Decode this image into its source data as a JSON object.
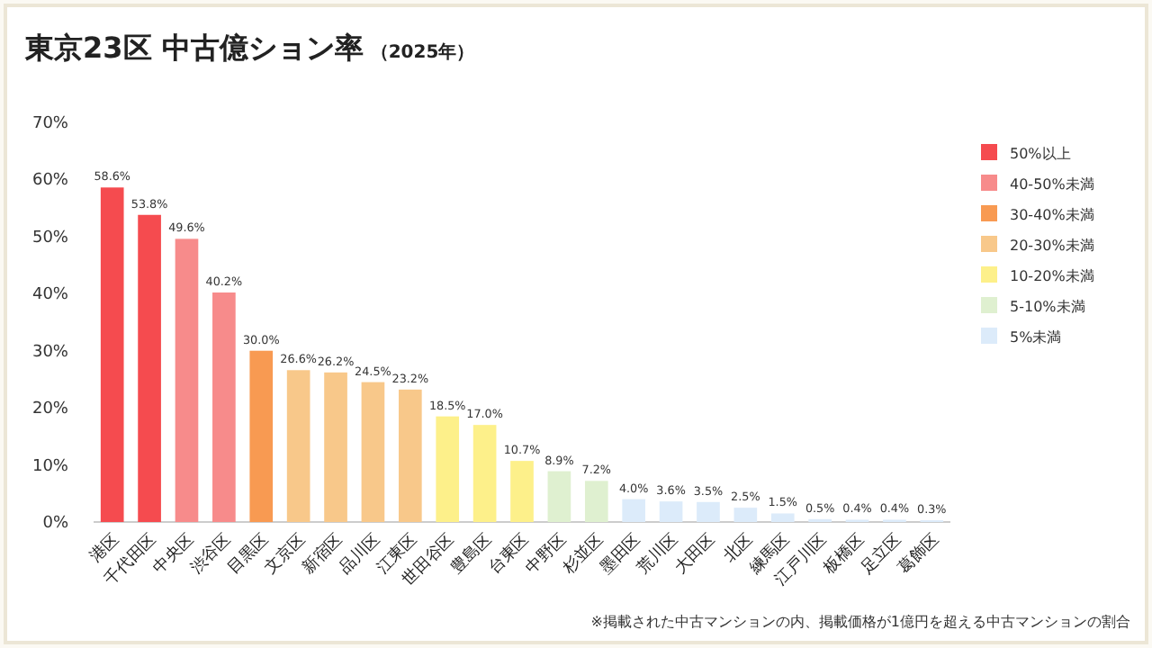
{
  "chart_data": {
    "type": "bar",
    "title": "東京23区 中古億ション率",
    "subtitle": "（2025年）",
    "categories": [
      "港区",
      "千代田区",
      "中央区",
      "渋谷区",
      "目黒区",
      "文京区",
      "新宿区",
      "品川区",
      "江東区",
      "世田谷区",
      "豊島区",
      "台東区",
      "中野区",
      "杉並区",
      "墨田区",
      "荒川区",
      "大田区",
      "北区",
      "練馬区",
      "江戸川区",
      "板橋区",
      "足立区",
      "葛飾区"
    ],
    "stacked": true,
    "series": [
      {
        "name": "50%以上",
        "color": "#f54b4f",
        "values": [
          58.6,
          53.8,
          null,
          null,
          null,
          null,
          null,
          null,
          null,
          null,
          null,
          null,
          null,
          null,
          null,
          null,
          null,
          null,
          null,
          null,
          null,
          null,
          null
        ],
        "value_labels": [
          "58.6%",
          "53.8%",
          null,
          null,
          null,
          null,
          null,
          null,
          null,
          null,
          null,
          null,
          null,
          null,
          null,
          null,
          null,
          null,
          null,
          null,
          null,
          null,
          null
        ]
      },
      {
        "name": "40-50%未満",
        "color": "#f78b8b",
        "values": [
          null,
          null,
          49.6,
          40.2,
          null,
          null,
          null,
          null,
          null,
          null,
          null,
          null,
          null,
          null,
          null,
          null,
          null,
          null,
          null,
          null,
          null,
          null,
          null
        ],
        "value_labels": [
          null,
          null,
          "49.6%",
          "40.2%",
          null,
          null,
          null,
          null,
          null,
          null,
          null,
          null,
          null,
          null,
          null,
          null,
          null,
          null,
          null,
          null,
          null,
          null,
          null
        ]
      },
      {
        "name": "30-40%未満",
        "color": "#f89a52",
        "values": [
          null,
          null,
          null,
          null,
          30.0,
          null,
          null,
          null,
          null,
          null,
          null,
          null,
          null,
          null,
          null,
          null,
          null,
          null,
          null,
          null,
          null,
          null,
          null
        ],
        "value_labels": [
          null,
          null,
          null,
          null,
          "30.0%",
          null,
          null,
          null,
          null,
          null,
          null,
          null,
          null,
          null,
          null,
          null,
          null,
          null,
          null,
          null,
          null,
          null,
          null
        ]
      },
      {
        "name": "20-30%未満",
        "color": "#f8c88a",
        "values": [
          null,
          null,
          null,
          null,
          null,
          26.6,
          26.2,
          24.5,
          23.2,
          null,
          null,
          null,
          null,
          null,
          null,
          null,
          null,
          null,
          null,
          null,
          null,
          null,
          null
        ],
        "value_labels": [
          null,
          null,
          null,
          null,
          null,
          "26.6%",
          "26.2%",
          "24.5%",
          "23.2%",
          null,
          null,
          null,
          null,
          null,
          null,
          null,
          null,
          null,
          null,
          null,
          null,
          null,
          null
        ]
      },
      {
        "name": "10-20%未満",
        "color": "#fdf08a",
        "values": [
          null,
          null,
          null,
          null,
          null,
          null,
          null,
          null,
          null,
          18.5,
          17.0,
          10.7,
          null,
          null,
          null,
          null,
          null,
          null,
          null,
          null,
          null,
          null,
          null
        ],
        "value_labels": [
          null,
          null,
          null,
          null,
          null,
          null,
          null,
          null,
          null,
          "18.5%",
          "17.0%",
          "10.7%",
          null,
          null,
          null,
          null,
          null,
          null,
          null,
          null,
          null,
          null,
          null
        ]
      },
      {
        "name": "5-10%未満",
        "color": "#dff0d0",
        "values": [
          null,
          null,
          null,
          null,
          null,
          null,
          null,
          null,
          null,
          null,
          null,
          null,
          8.9,
          7.2,
          null,
          null,
          null,
          null,
          null,
          null,
          null,
          null,
          null
        ],
        "value_labels": [
          null,
          null,
          null,
          null,
          null,
          null,
          null,
          null,
          null,
          null,
          null,
          null,
          "8.9%",
          "7.2%",
          null,
          null,
          null,
          null,
          null,
          null,
          null,
          null,
          null
        ]
      },
      {
        "name": "5%未満",
        "color": "#dcebfa",
        "values": [
          null,
          null,
          null,
          null,
          null,
          null,
          null,
          null,
          null,
          null,
          null,
          null,
          null,
          null,
          4.0,
          3.6,
          3.5,
          2.5,
          1.5,
          0.5,
          0.4,
          0.4,
          0.3
        ],
        "value_labels": [
          null,
          null,
          null,
          null,
          null,
          null,
          null,
          null,
          null,
          null,
          null,
          null,
          null,
          null,
          "4.0%",
          "3.6%",
          "3.5%",
          "2.5%",
          "1.5%",
          "0.5%",
          "0.4%",
          "0.4%",
          "0.3%"
        ]
      }
    ],
    "ylim": [
      0,
      70
    ],
    "yticks": [
      {
        "value": 0,
        "label": "0%"
      },
      {
        "value": 10,
        "label": "10%"
      },
      {
        "value": 20,
        "label": "20%"
      },
      {
        "value": 30,
        "label": "30%"
      },
      {
        "value": 40,
        "label": "40%"
      },
      {
        "value": 50,
        "label": "50%"
      },
      {
        "value": 60,
        "label": "60%"
      },
      {
        "value": 70,
        "label": "70%"
      }
    ],
    "legend": "right",
    "annotations": [
      "※掲載された中古マンションの内、掲載価格が1億円を超える中古マンションの割合"
    ]
  }
}
